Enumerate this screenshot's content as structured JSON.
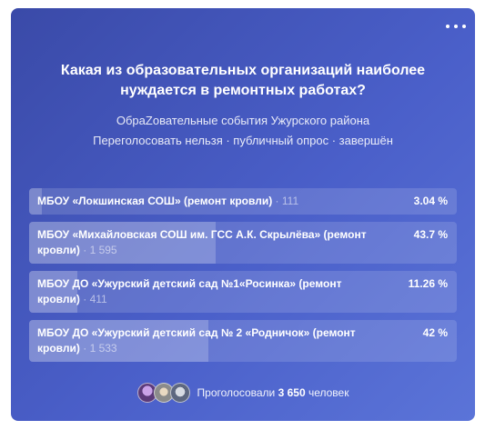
{
  "poll": {
    "question": "Какая из образовательных организаций наиболее нуждается в ремонтных работах?",
    "author": "ОбраZовательные события Ужурского района",
    "meta": "Переголосовать нельзя · публичный опрос · завершён",
    "answers": [
      {
        "text": "МБОУ «Локшинская СОШ» (ремонт кровли)",
        "count": "· 111",
        "percent": "3.04 %",
        "share": 3.04
      },
      {
        "text": "МБОУ «Михайловская СОШ им. ГСС А.К. Скрылёва» (ремонт кровли)",
        "count": "· 1 595",
        "percent": "43.7 %",
        "share": 43.7
      },
      {
        "text": "МБОУ ДО «Ужурский детский сад №1«Росинка» (ремонт кровли)",
        "count": "· 411",
        "percent": "11.26 %",
        "share": 11.26
      },
      {
        "text": "МБОУ ДО «Ужурский детский сад № 2 «Родничок» (ремонт кровли)",
        "count": "· 1 533",
        "percent": "42 %",
        "share": 42
      }
    ],
    "voters": {
      "label": "Проголосовали",
      "count": "3 650",
      "unit": "человек"
    }
  },
  "icons": {
    "menu": "more-horizontal-icon"
  },
  "colors": {
    "card_gradient_start": "#3a4aa8",
    "card_gradient_end": "#5b74d8",
    "text": "#ffffff"
  }
}
